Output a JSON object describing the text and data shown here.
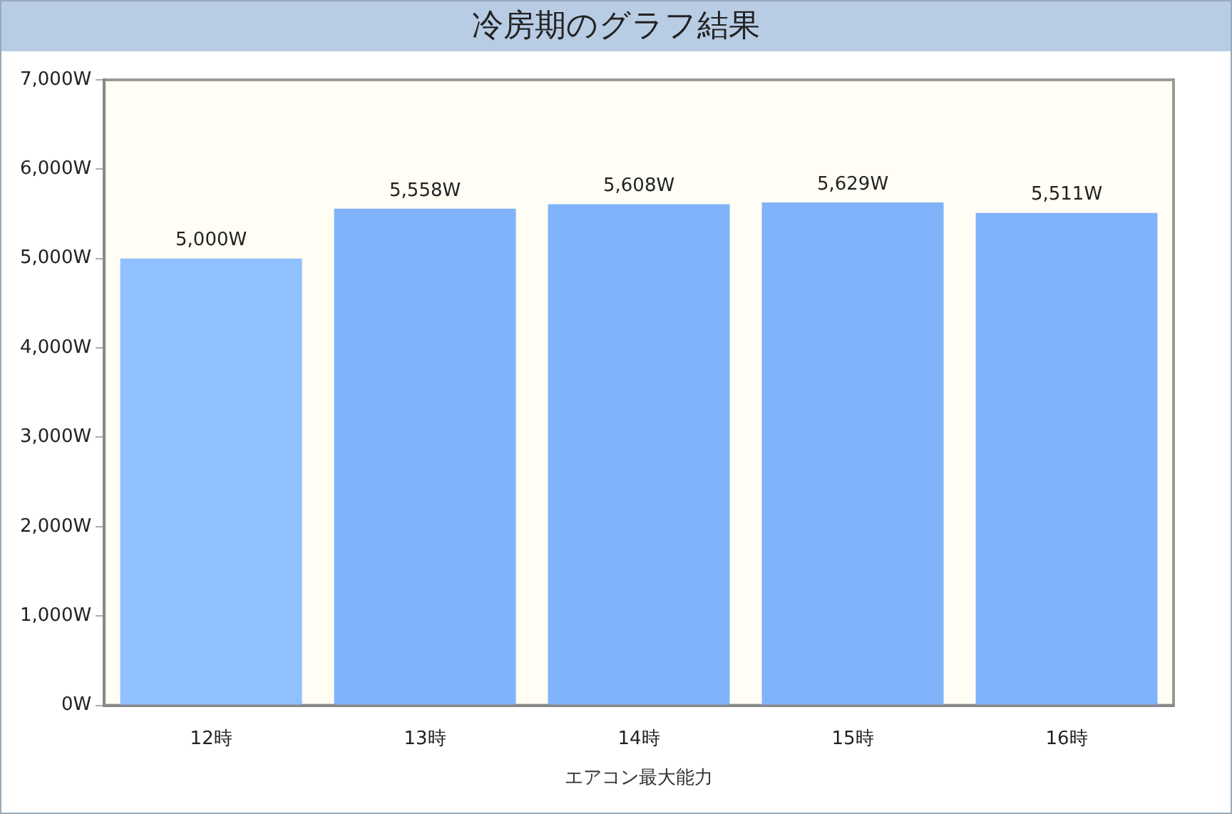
{
  "chart_data": {
    "type": "bar",
    "title": "冷房期のグラフ結果",
    "xlabel": "エアコン最大能力",
    "categories": [
      "12時",
      "13時",
      "14時",
      "15時",
      "16時"
    ],
    "values": [
      5000,
      5558,
      5608,
      5629,
      5511
    ],
    "colors": [
      "#8fc0ff",
      "#80b3fa",
      "#80b3fa",
      "#80b3fa",
      "#80b3fa"
    ],
    "value_labels": [
      "5,000W",
      "5,558W",
      "5,608W",
      "5,629W",
      "5,511W"
    ],
    "ylim": [
      0,
      7000
    ],
    "yticks": [
      {
        "value": 0,
        "label": "0W"
      },
      {
        "value": 1000,
        "label": "1,000W"
      },
      {
        "value": 2000,
        "label": "2,000W"
      },
      {
        "value": 3000,
        "label": "3,000W"
      },
      {
        "value": 4000,
        "label": "4,000W"
      },
      {
        "value": 5000,
        "label": "5,000W"
      },
      {
        "value": 6000,
        "label": "6,000W"
      },
      {
        "value": 7000,
        "label": "7,000W"
      }
    ],
    "grid": false,
    "legend": false
  }
}
